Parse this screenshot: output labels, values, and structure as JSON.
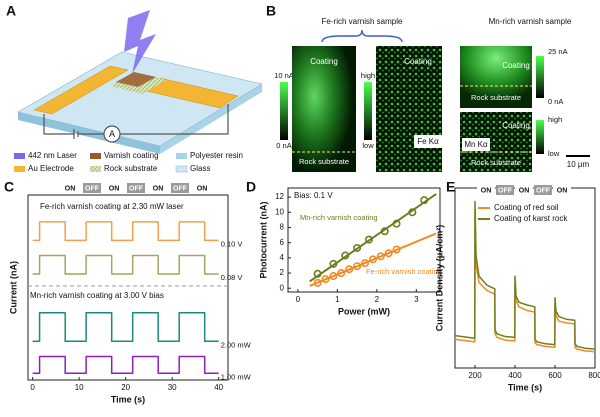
{
  "panel_a": {
    "label": "A",
    "ammeter": "A",
    "legend": [
      "442 nm Laser",
      "Varnish coating",
      "Polyester resin",
      "Au Electrode",
      "Rock substrate",
      "Glass"
    ]
  },
  "panel_b": {
    "label": "B",
    "fe_sample": {
      "title": "Fe-rich varnish sample",
      "current_map": {
        "coating": "Coating",
        "substrate": "Rock substrate",
        "scale_max": "10 nA",
        "scale_min": "0 nA"
      },
      "xrf_map": {
        "coating": "Coating",
        "element": "Fe Kα",
        "scale_max": "high",
        "scale_min": "low"
      }
    },
    "mn_sample": {
      "title": "Mn-rich varnish sample",
      "current_map": {
        "coating": "Coating",
        "substrate": "Rock substrate",
        "scale_max": "25 nA",
        "scale_min": "0 nA"
      },
      "xrf_map": {
        "coating": "Coating",
        "substrate": "Rock substrate",
        "element": "Mn Kα",
        "scale_max": "high",
        "scale_min": "low"
      },
      "scale_bar": "10 μm"
    }
  },
  "chart_data": [
    {
      "type": "line",
      "panel_label": "C",
      "x_label": "Time (s)",
      "y_label": "Current (nA)",
      "annotations": [
        "Fe-rich varnish coating at 2.30 mW laser",
        "Mn-rich varnish coating at 3.00 V bias"
      ],
      "on_off": [
        "ON",
        "OFF",
        "ON",
        "OFF",
        "ON",
        "OFF",
        "ON"
      ],
      "x": [
        0,
        1.5,
        1.5,
        7,
        7,
        11.5,
        11.5,
        17,
        17,
        21.5,
        21.5,
        27,
        27,
        31.5,
        31.5,
        37,
        37,
        40
      ],
      "series": [
        {
          "name": "0.10 V",
          "color": "#f4a04a",
          "values": [
            8.3,
            8.3,
            9.4,
            9.4,
            8.3,
            8.3,
            9.4,
            9.4,
            8.3,
            8.3,
            9.4,
            9.4,
            8.3,
            8.3,
            9.4,
            9.4,
            8.3,
            8.3
          ]
        },
        {
          "name": "0.08 V",
          "color": "#aaa262",
          "values": [
            6.3,
            6.3,
            7.4,
            7.4,
            6.3,
            6.3,
            7.4,
            7.4,
            6.3,
            6.3,
            7.4,
            7.4,
            6.3,
            6.3,
            7.4,
            7.4,
            6.3,
            6.3
          ]
        },
        {
          "name": "2.00 mW",
          "color": "#1a8a80",
          "values": [
            2.3,
            2.3,
            4.0,
            4.0,
            2.3,
            2.3,
            4.0,
            4.0,
            2.3,
            2.3,
            4.0,
            4.0,
            2.3,
            2.3,
            4.0,
            4.0,
            2.3,
            2.3
          ]
        },
        {
          "name": "1.00 mW",
          "color": "#8a1fc7",
          "values": [
            0.4,
            0.4,
            1.4,
            1.4,
            0.4,
            0.4,
            1.4,
            1.4,
            0.4,
            0.4,
            1.4,
            1.4,
            0.4,
            0.4,
            1.4,
            1.4,
            0.4,
            0.4
          ]
        }
      ],
      "xlim": [
        -1,
        42
      ],
      "xticks": [
        0,
        10,
        20,
        30,
        40
      ],
      "ylim": [
        0,
        11
      ]
    },
    {
      "type": "scatter",
      "panel_label": "D",
      "x_label": "Power (mW)",
      "y_label": "Photocurrent (nA)",
      "annotations": [
        "Bias: 0.1 V"
      ],
      "series": [
        {
          "name": "Mn-rich varnish coating",
          "color": "#6b7d1e",
          "x": [
            0.5,
            0.9,
            1.2,
            1.5,
            1.8,
            2.2,
            2.5,
            2.9,
            3.2
          ],
          "y": [
            1.9,
            3.2,
            4.3,
            5.3,
            6.4,
            7.5,
            8.5,
            10.0,
            11.6
          ],
          "fit_x": [
            0.3,
            3.5
          ],
          "fit_y": [
            0.9,
            12.4
          ]
        },
        {
          "name": "Fe-rich varnish coating",
          "color": "#f08a24",
          "x": [
            0.5,
            0.7,
            0.9,
            1.1,
            1.3,
            1.5,
            1.7,
            1.9,
            2.1,
            2.3,
            2.5
          ],
          "y": [
            0.7,
            1.2,
            1.6,
            2.0,
            2.5,
            2.9,
            3.3,
            3.8,
            4.2,
            4.6,
            5.1
          ],
          "fit_x": [
            0.3,
            3.5
          ],
          "fit_y": [
            0.3,
            7.2
          ]
        }
      ],
      "xlim": [
        -0.25,
        3.6
      ],
      "xticks": [
        0,
        1,
        2,
        3
      ],
      "ylim": [
        -0.5,
        13.2
      ],
      "yticks": [
        0,
        2,
        4,
        6,
        8,
        10,
        12
      ]
    },
    {
      "type": "line",
      "panel_label": "E",
      "x_label": "Time (s)",
      "y_label": "Current Density (μA/cm²)",
      "on_off": [
        "ON",
        "OFF",
        "ON",
        "OFF",
        "ON"
      ],
      "x": [
        100,
        199,
        200,
        205,
        220,
        260,
        299,
        300,
        310,
        350,
        399,
        400,
        405,
        420,
        460,
        499,
        500,
        510,
        550,
        599,
        600,
        605,
        620,
        660,
        699,
        700,
        710,
        750,
        800
      ],
      "series": [
        {
          "name": "Coating of red soil",
          "color": "#f08a24",
          "values": [
            3.2,
            2.9,
            17.5,
            11.5,
            9.5,
            8.6,
            8.2,
            3.8,
            3.4,
            3.1,
            3.0,
            9.5,
            7.5,
            6.8,
            6.4,
            6.2,
            2.8,
            2.6,
            2.4,
            2.3,
            7.2,
            5.8,
            5.2,
            5.0,
            4.9,
            2.3,
            2.1,
            1.9,
            1.8
          ]
        },
        {
          "name": "Coating of karst rock",
          "color": "#6d7f1c",
          "values": [
            3.6,
            3.3,
            18.5,
            12.5,
            10.2,
            9.2,
            8.8,
            4.2,
            3.8,
            3.5,
            3.4,
            10.2,
            8.0,
            7.3,
            7.0,
            6.8,
            3.2,
            2.9,
            2.7,
            2.6,
            7.8,
            6.3,
            5.7,
            5.4,
            5.3,
            2.7,
            2.4,
            2.2,
            2.1
          ]
        }
      ],
      "xlim": [
        100,
        800
      ],
      "xticks": [
        200,
        400,
        600,
        800
      ],
      "ylim": [
        0,
        20
      ]
    }
  ]
}
